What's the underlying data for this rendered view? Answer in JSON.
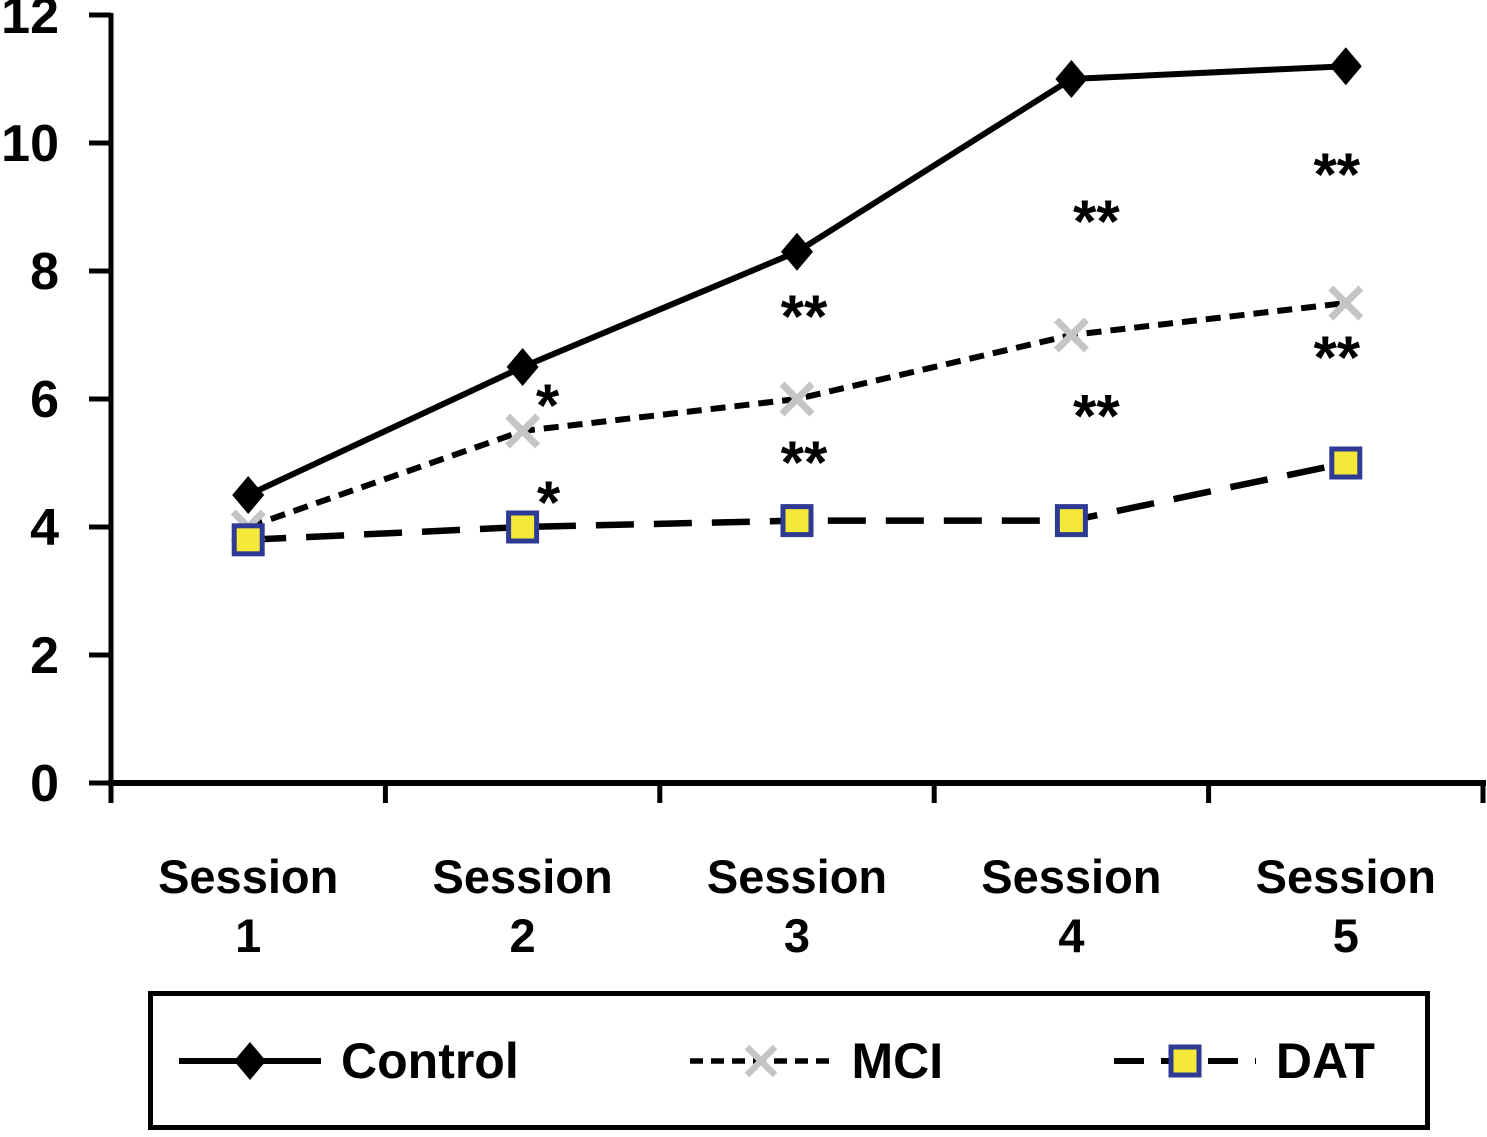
{
  "figure": {
    "background": "#ffffff",
    "axis_color": "#000000",
    "annotation_color": "#000000"
  },
  "chart_data": {
    "type": "line",
    "title": "",
    "xlabel": "",
    "ylabel": "",
    "grid": false,
    "ylim": [
      0,
      12
    ],
    "categories": [
      [
        "Session",
        "1"
      ],
      [
        "Session",
        "2"
      ],
      [
        "Session",
        "3"
      ],
      [
        "Session",
        "4"
      ],
      [
        "Session",
        "5"
      ]
    ],
    "y_axis": {
      "min": 0,
      "max": 12,
      "tick_step": 2,
      "tick_labels": [
        "0",
        "2",
        "4",
        "6",
        "8",
        "10",
        "12"
      ]
    },
    "series": [
      {
        "name": "Control",
        "line_style": "solid",
        "line_color": "#000000",
        "marker": "diamond",
        "marker_color": "#000000",
        "values": [
          4.5,
          6.5,
          8.3,
          11,
          11.2
        ]
      },
      {
        "name": "MCI",
        "line_style": "dash",
        "line_color": "#000000",
        "marker": "x",
        "marker_color": "#c3c5c7",
        "values": [
          4,
          5.5,
          6,
          7,
          7.5
        ]
      },
      {
        "name": "DAT",
        "line_style": "longdash",
        "line_color": "#000000",
        "marker": "square",
        "marker_fill": "#f4e838",
        "marker_border": "#2e3a93",
        "values": [
          3.8,
          4,
          4.1,
          4.1,
          5
        ]
      }
    ],
    "annotations": [
      {
        "text": "*",
        "category_index": 1,
        "dx": 25,
        "y": 6.05
      },
      {
        "text": "*",
        "category_index": 1,
        "dx": 26,
        "y": 4.53
      },
      {
        "text": "**",
        "category_index": 2,
        "dx": 7,
        "y": 7.44
      },
      {
        "text": "**",
        "category_index": 2,
        "dx": 7,
        "y": 5.16
      },
      {
        "text": "**",
        "category_index": 3,
        "dx": 25,
        "y": 8.92
      },
      {
        "text": "**",
        "category_index": 3,
        "dx": 25,
        "y": 5.88
      },
      {
        "text": "**",
        "category_index": 4,
        "dx": -9,
        "y": 9.66
      },
      {
        "text": "**",
        "category_index": 4,
        "dx": -9,
        "y": 6.8
      }
    ],
    "legend": {
      "position": "bottom",
      "entries": [
        "Control",
        "MCI",
        "DAT"
      ]
    }
  }
}
